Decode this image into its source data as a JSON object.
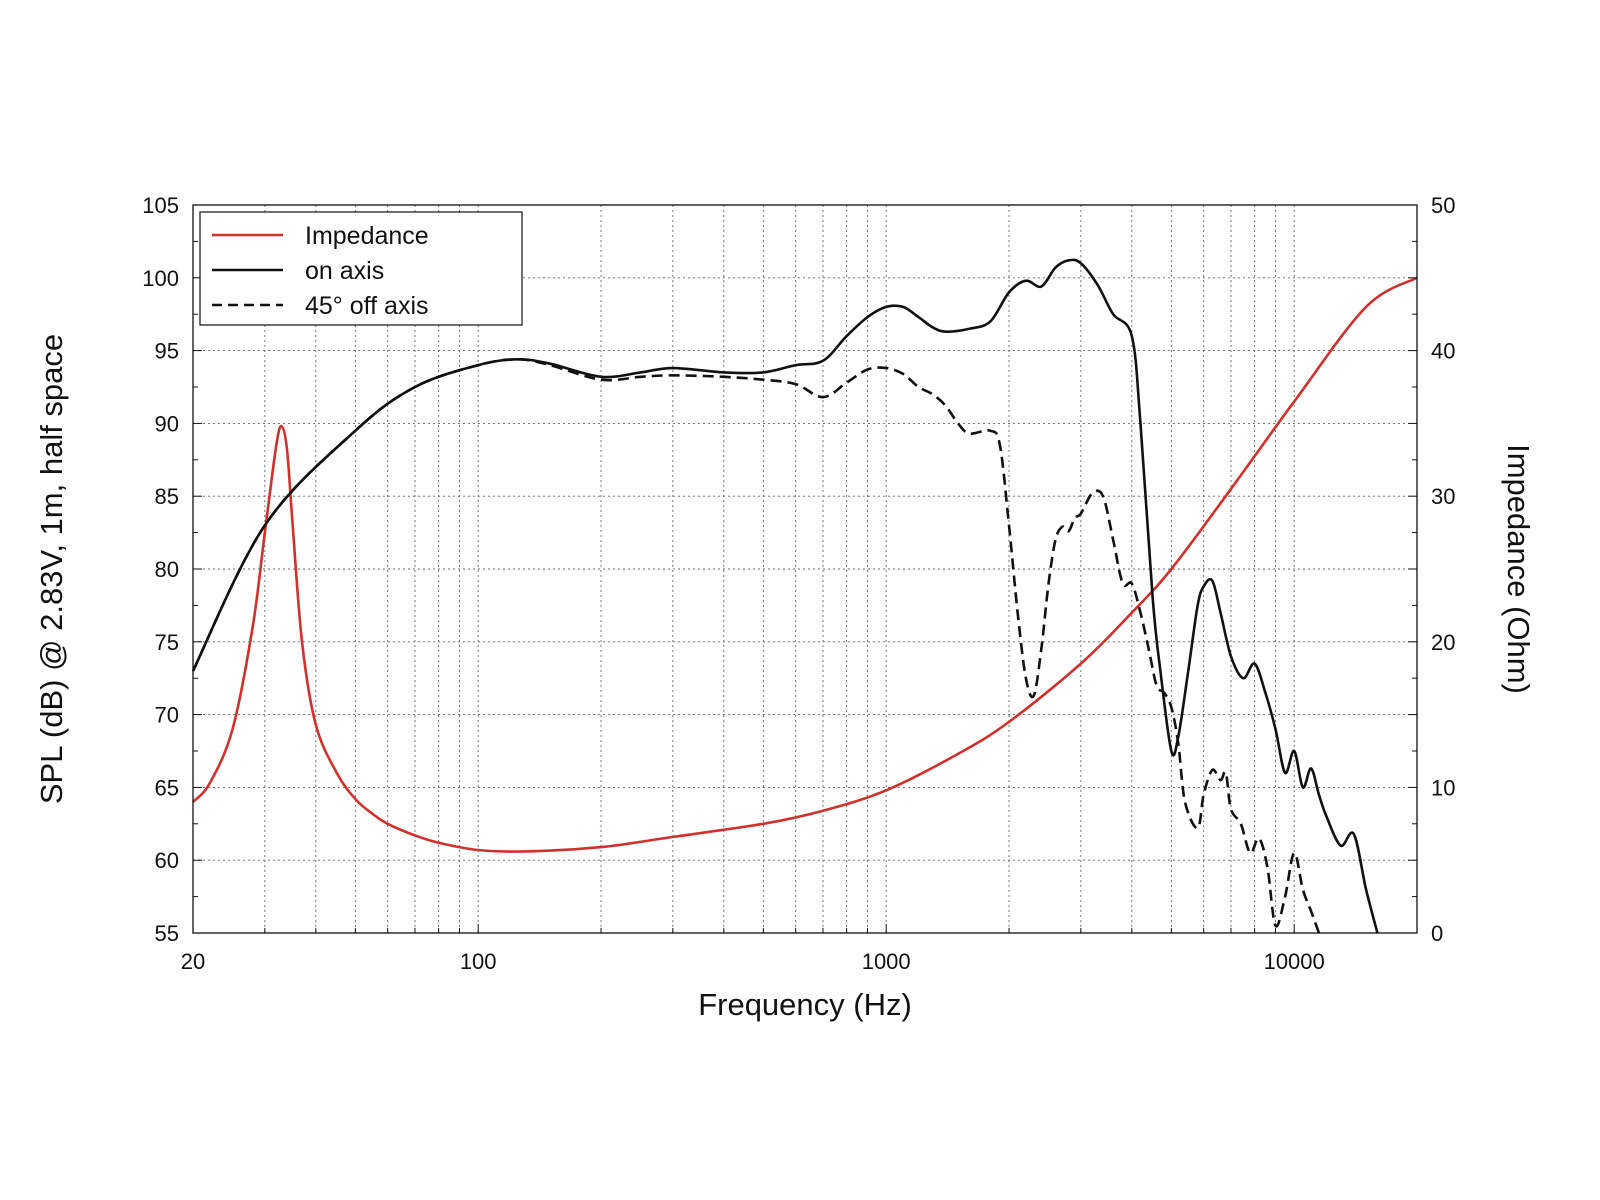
{
  "chart_data": {
    "type": "line",
    "xlabel": "Frequency (Hz)",
    "ylabel": "SPL (dB) @ 2.83V, 1m, half space",
    "y2label": "Impedance (Ohm)",
    "xscale": "log",
    "xlim": [
      20,
      20000
    ],
    "ylim": [
      55,
      105
    ],
    "y2lim": [
      0,
      50
    ],
    "x_tick_labels": [
      "20",
      "100",
      "1000",
      "10000"
    ],
    "x_ticks": [
      20,
      100,
      1000,
      10000
    ],
    "y_ticks": [
      55,
      60,
      65,
      70,
      75,
      80,
      85,
      90,
      95,
      100,
      105
    ],
    "y_tick_labels": [
      "55",
      "60",
      "65",
      "70",
      "75",
      "80",
      "85",
      "90",
      "95",
      "100",
      "105"
    ],
    "y2_ticks": [
      0,
      10,
      20,
      30,
      40,
      50
    ],
    "y2_tick_labels": [
      "0",
      "10",
      "20",
      "30",
      "40",
      "50"
    ],
    "grid": true,
    "legend_position": "top-left",
    "colors": {
      "impedance": "#d0312d",
      "on_axis": "#111111",
      "off_axis": "#111111"
    },
    "series": [
      {
        "name": "Impedance",
        "axis": "right",
        "style": "solid",
        "color": "#d0312d",
        "x": [
          20,
          22,
          25,
          28,
          30,
          32,
          33,
          34,
          35,
          37,
          40,
          45,
          50,
          55,
          60,
          70,
          80,
          100,
          130,
          200,
          300,
          500,
          700,
          1000,
          1500,
          2000,
          3000,
          4000,
          5000,
          7000,
          10000,
          15000,
          20000
        ],
        "y": [
          9.0,
          10.3,
          14.0,
          21.0,
          27.5,
          33.5,
          34.8,
          33.2,
          28.5,
          20.0,
          14.3,
          11.0,
          9.2,
          8.2,
          7.5,
          6.7,
          6.2,
          5.7,
          5.6,
          5.9,
          6.6,
          7.5,
          8.4,
          9.8,
          12.3,
          14.5,
          18.5,
          22.0,
          25.0,
          30.5,
          36.5,
          43.0,
          45.0
        ]
      },
      {
        "name": "on axis",
        "axis": "left",
        "style": "solid",
        "color": "#111111",
        "x": [
          20,
          30,
          50,
          70,
          100,
          125,
          150,
          200,
          250,
          300,
          400,
          500,
          600,
          700,
          800,
          900,
          1000,
          1100,
          1200,
          1300,
          1400,
          1600,
          1800,
          2000,
          2200,
          2400,
          2600,
          2800,
          3000,
          3300,
          3600,
          4000,
          4200,
          4500,
          4700,
          5000,
          5200,
          5500,
          5800,
          6000,
          6300,
          6600,
          7000,
          7500,
          8000,
          8500,
          9000,
          9500,
          10000,
          10500,
          11000,
          11500,
          12000,
          13000,
          14000,
          15000,
          16000
        ],
        "y": [
          73.0,
          83.0,
          89.5,
          92.5,
          94.0,
          94.4,
          94.1,
          93.2,
          93.5,
          93.8,
          93.5,
          93.5,
          94.0,
          94.3,
          96.0,
          97.3,
          98.0,
          98.0,
          97.3,
          96.6,
          96.3,
          96.5,
          97.0,
          99.0,
          99.8,
          99.4,
          100.7,
          101.2,
          101.0,
          99.5,
          97.5,
          96.0,
          90.0,
          78.0,
          73.0,
          67.5,
          68.5,
          73.0,
          77.5,
          78.8,
          79.2,
          77.0,
          74.0,
          72.5,
          73.5,
          71.5,
          69.0,
          66.0,
          67.5,
          65.0,
          66.3,
          64.5,
          63.0,
          61.0,
          61.8,
          58.0,
          55.0
        ]
      },
      {
        "name": "45° off axis",
        "axis": "left",
        "style": "dashed",
        "color": "#111111",
        "x": [
          20,
          30,
          50,
          70,
          100,
          125,
          150,
          200,
          250,
          300,
          400,
          500,
          600,
          700,
          800,
          900,
          1000,
          1100,
          1200,
          1300,
          1400,
          1500,
          1600,
          1800,
          1900,
          2000,
          2100,
          2200,
          2300,
          2400,
          2500,
          2600,
          2700,
          2800,
          2900,
          3000,
          3200,
          3400,
          3600,
          3800,
          4000,
          4200,
          4400,
          4600,
          4800,
          5000,
          5200,
          5400,
          5800,
          6000,
          6300,
          6600,
          6800,
          7000,
          7400,
          7800,
          8200,
          8600,
          9000,
          9500,
          10000,
          10500,
          11000,
          11500
        ],
        "y": [
          73.0,
          83.0,
          89.5,
          92.5,
          94.0,
          94.4,
          94.0,
          93.0,
          93.2,
          93.3,
          93.2,
          93.0,
          92.7,
          91.8,
          92.8,
          93.7,
          93.8,
          93.4,
          92.5,
          92.0,
          91.2,
          90.0,
          89.3,
          89.5,
          88.5,
          83.0,
          77.0,
          72.5,
          71.3,
          74.5,
          79.0,
          82.0,
          82.9,
          82.6,
          83.5,
          83.8,
          85.2,
          85.0,
          82.0,
          79.0,
          79.0,
          77.0,
          74.5,
          72.0,
          71.5,
          70.5,
          68.0,
          64.0,
          62.2,
          64.5,
          66.2,
          65.5,
          66.0,
          63.5,
          62.5,
          60.5,
          61.5,
          59.5,
          55.5,
          57.5,
          60.5,
          58.0,
          56.5,
          55.0
        ]
      }
    ]
  }
}
